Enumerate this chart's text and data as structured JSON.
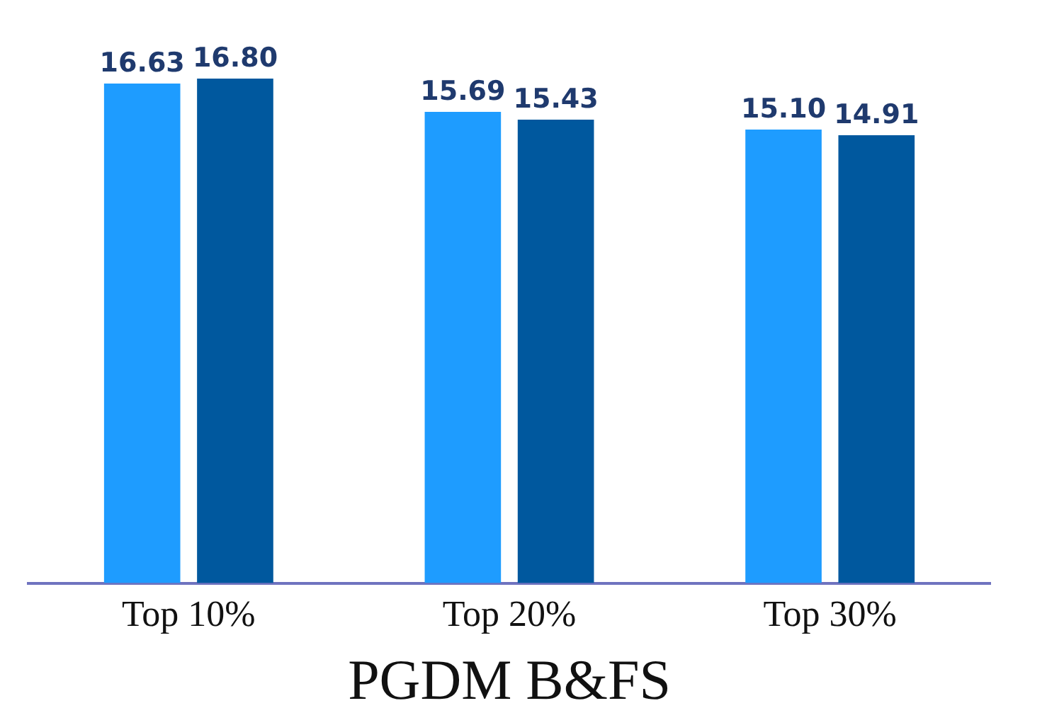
{
  "chart_data": {
    "type": "bar",
    "xlabel": "PGDM B&FS",
    "categories": [
      "Top 10%",
      "Top 20%",
      "Top 30%"
    ],
    "series": [
      {
        "color": "#1e9cff",
        "values": [
          16.63,
          15.69,
          15.1
        ],
        "value_labels": [
          "16.63",
          "15.69",
          "15.10"
        ]
      },
      {
        "color": "#00589e",
        "values": [
          16.8,
          15.43,
          14.91
        ],
        "value_labels": [
          "16.80",
          "15.43",
          "14.91"
        ]
      }
    ],
    "tick_labels": "x",
    "grid": false,
    "legend": false
  }
}
